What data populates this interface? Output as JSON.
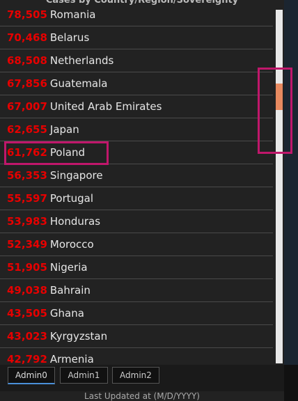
{
  "header": {
    "title": "Cases by Country/Region/Sovereignty"
  },
  "list": [
    {
      "count": "78,505",
      "name": "Romania"
    },
    {
      "count": "70,468",
      "name": "Belarus"
    },
    {
      "count": "68,508",
      "name": "Netherlands"
    },
    {
      "count": "67,856",
      "name": "Guatemala"
    },
    {
      "count": "67,007",
      "name": "United Arab Emirates"
    },
    {
      "count": "62,655",
      "name": "Japan"
    },
    {
      "count": "61,762",
      "name": "Poland"
    },
    {
      "count": "56,353",
      "name": "Singapore"
    },
    {
      "count": "55,597",
      "name": "Portugal"
    },
    {
      "count": "53,983",
      "name": "Honduras"
    },
    {
      "count": "52,349",
      "name": "Morocco"
    },
    {
      "count": "51,905",
      "name": "Nigeria"
    },
    {
      "count": "49,038",
      "name": "Bahrain"
    },
    {
      "count": "43,505",
      "name": "Ghana"
    },
    {
      "count": "43,023",
      "name": "Kyrgyzstan"
    },
    {
      "count": "42,792",
      "name": "Armenia"
    }
  ],
  "tabs": [
    "Admin0",
    "Admin1",
    "Admin2"
  ],
  "footer": "Last Updated at (M/D/YYYY)"
}
